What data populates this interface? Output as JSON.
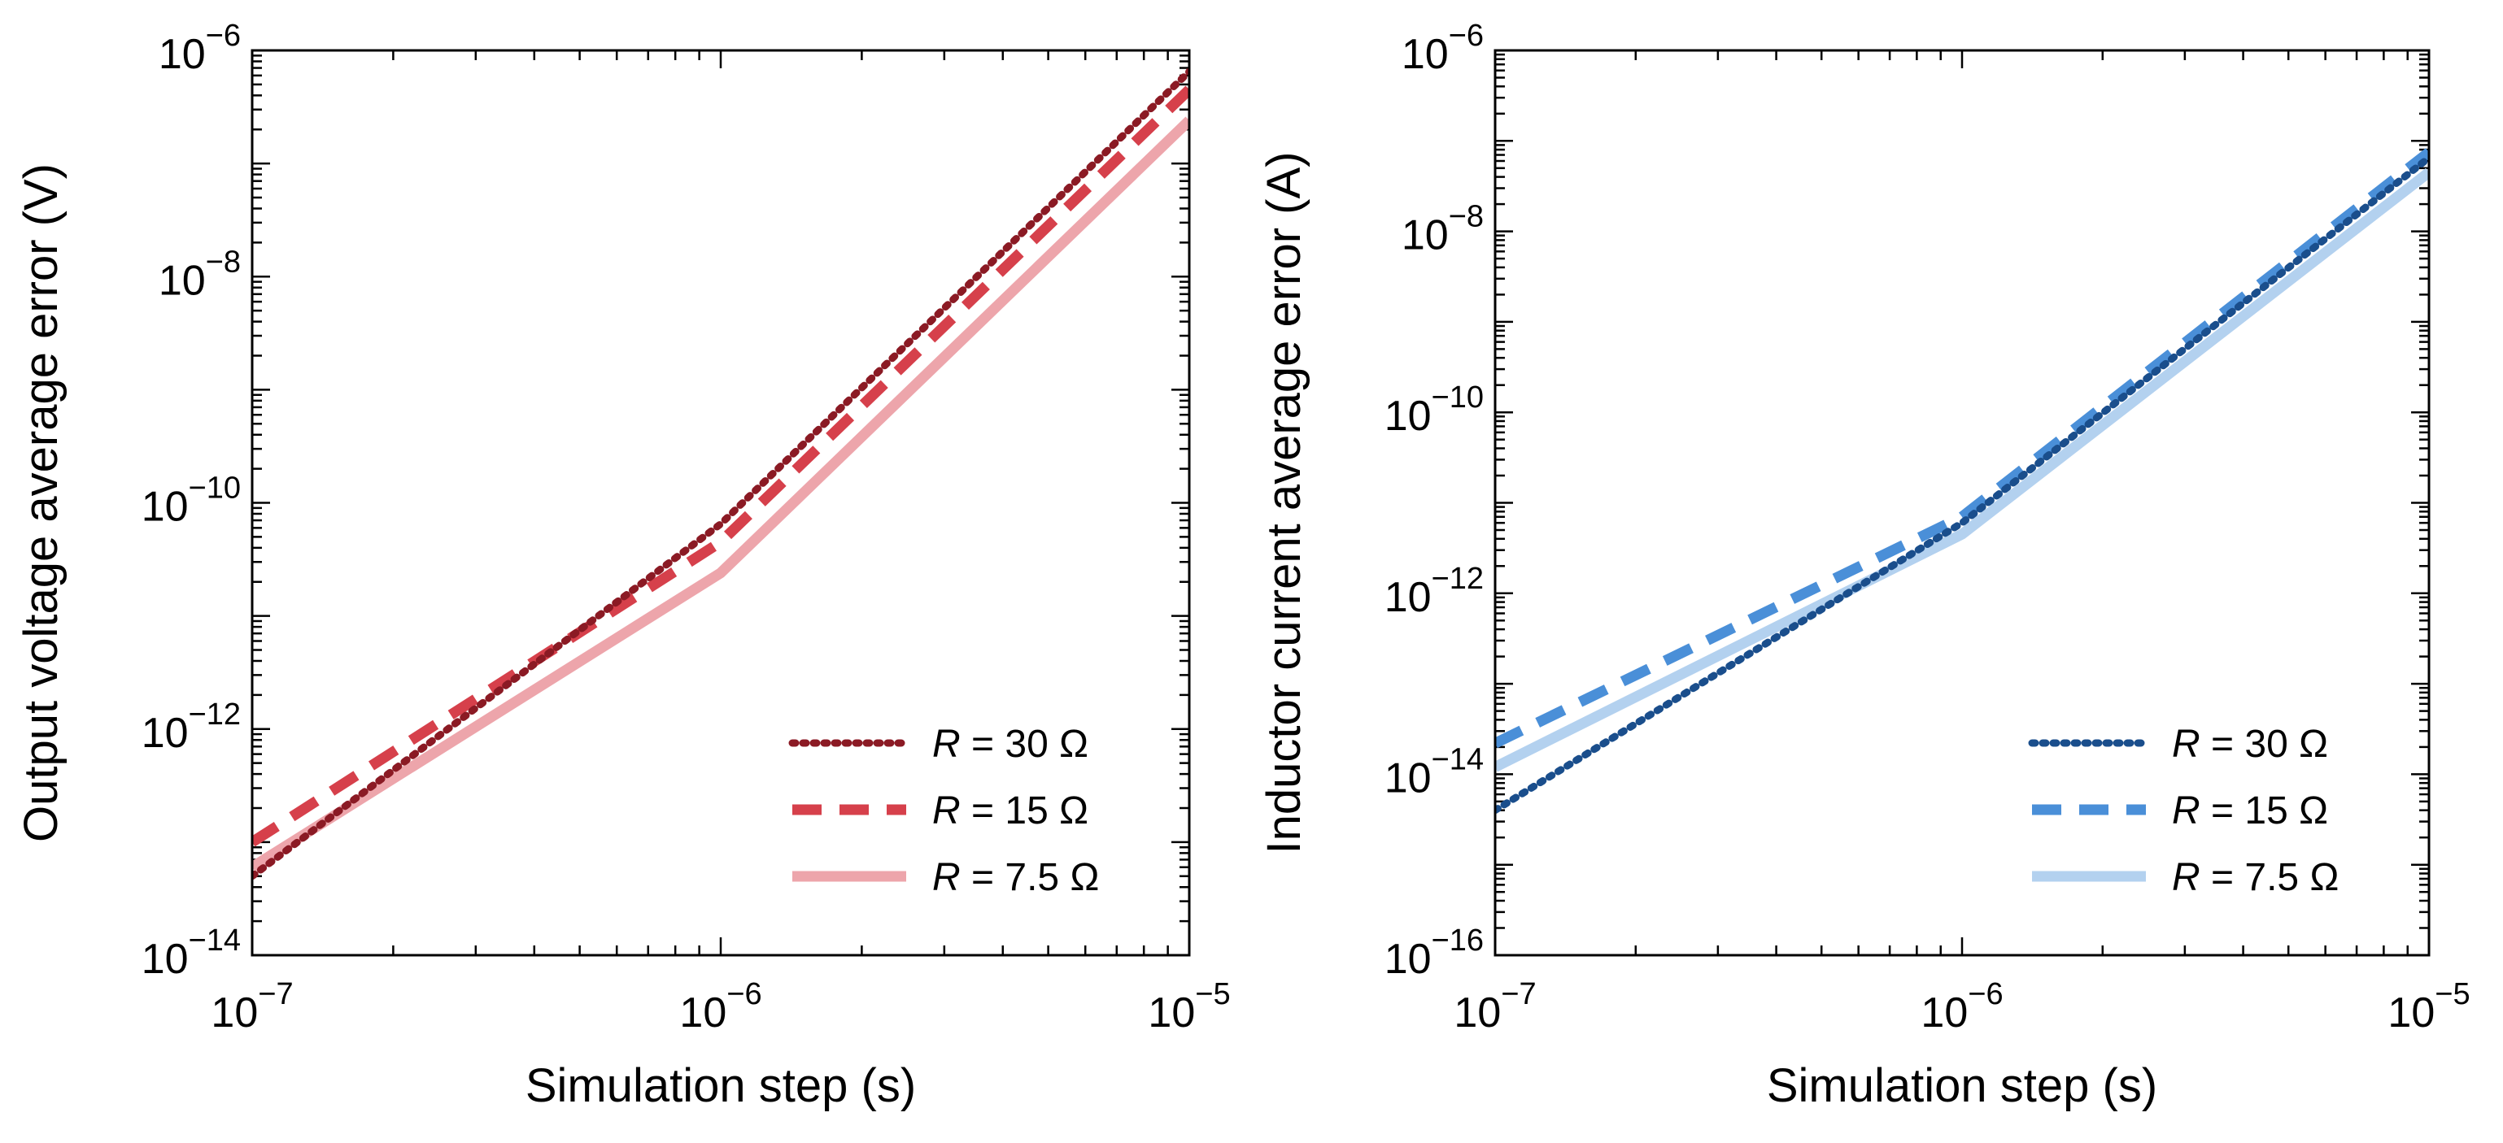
{
  "chart_data": [
    {
      "type": "line",
      "xscale": "log",
      "yscale": "log",
      "xlabel": "Simulation step (s)",
      "ylabel": "Output voltage average error (V)",
      "xlim": [
        1e-07,
        1e-05
      ],
      "ylim": [
        1e-14,
        1e-06
      ],
      "x": [
        1e-07,
        1e-06,
        1e-05
      ],
      "xticks": [
        {
          "value": 1e-07,
          "base": "10",
          "exp": "−7"
        },
        {
          "value": 1e-06,
          "base": "10",
          "exp": "−6"
        },
        {
          "value": 1e-05,
          "base": "10",
          "exp": "−5"
        }
      ],
      "yticks": [
        {
          "value": 1e-14,
          "base": "10",
          "exp": "−14"
        },
        {
          "value": 1e-12,
          "base": "10",
          "exp": "−12"
        },
        {
          "value": 1e-10,
          "base": "10",
          "exp": "−10"
        },
        {
          "value": 1e-08,
          "base": "10",
          "exp": "−8"
        },
        {
          "value": 1e-06,
          "base": "10",
          "exp": "−6"
        }
      ],
      "legend_position": "bottom-right",
      "series": [
        {
          "name": "R = 30 Ω",
          "var": "R",
          "rest": " = 30 Ω",
          "color": "#8b1a24",
          "dash": "dot",
          "values": [
            5e-14,
            6.5e-11,
            6.5e-07
          ]
        },
        {
          "name": "R = 15 Ω",
          "var": "R",
          "rest": " = 15 Ω",
          "color": "#d6404b",
          "dash": "dash",
          "values": [
            1e-13,
            4.5e-11,
            4.5e-07
          ]
        },
        {
          "name": "R = 7.5 Ω",
          "var": "R",
          "rest": " = 7.5 Ω",
          "color": "#eda5ab",
          "dash": "solid",
          "values": [
            6e-14,
            2.4e-11,
            2.4e-07
          ]
        }
      ]
    },
    {
      "type": "line",
      "xscale": "log",
      "yscale": "log",
      "xlabel": "Simulation step (s)",
      "ylabel": "Inductor current average error (A)",
      "xlim": [
        1e-07,
        1e-05
      ],
      "ylim": [
        1e-16,
        1e-06
      ],
      "x": [
        1e-07,
        1e-06,
        1e-05
      ],
      "xticks": [
        {
          "value": 1e-07,
          "base": "10",
          "exp": "−7"
        },
        {
          "value": 1e-06,
          "base": "10",
          "exp": "−6"
        },
        {
          "value": 1e-05,
          "base": "10",
          "exp": "−5"
        }
      ],
      "yticks": [
        {
          "value": 1e-16,
          "base": "10",
          "exp": "−16"
        },
        {
          "value": 1e-14,
          "base": "10",
          "exp": "−14"
        },
        {
          "value": 1e-12,
          "base": "10",
          "exp": "−12"
        },
        {
          "value": 1e-10,
          "base": "10",
          "exp": "−10"
        },
        {
          "value": 1e-08,
          "base": "10",
          "exp": "−8"
        },
        {
          "value": 1e-06,
          "base": "10",
          "exp": "−6"
        }
      ],
      "legend_position": "bottom-right",
      "series": [
        {
          "name": "R = 30 Ω",
          "var": "R",
          "rest": " = 30 Ω",
          "color": "#1a4e8c",
          "dash": "dot",
          "values": [
            4e-15,
            6e-12,
            6.5e-08
          ]
        },
        {
          "name": "R = 15 Ω",
          "var": "R",
          "rest": " = 15 Ω",
          "color": "#4a8fd8",
          "dash": "dash",
          "values": [
            2.2e-14,
            7e-12,
            7.5e-08
          ]
        },
        {
          "name": "R = 7.5 Ω",
          "var": "R",
          "rest": " = 7.5 Ω",
          "color": "#b3d1ef",
          "dash": "solid",
          "values": [
            1.2e-14,
            4.5e-12,
            4.5e-08
          ]
        }
      ]
    }
  ]
}
